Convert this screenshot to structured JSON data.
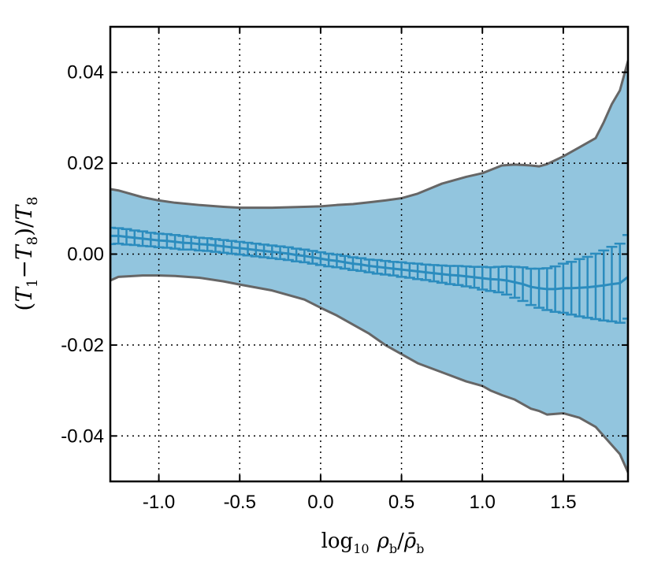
{
  "chart_data": {
    "type": "area",
    "title": "",
    "xlabel": "log10 ρb/ρ̄b",
    "ylabel": "(T1−T8)/T8",
    "xlim": [
      -1.3,
      1.9
    ],
    "ylim": [
      -0.05,
      0.05
    ],
    "x_ticks": [
      -1.0,
      -0.5,
      0.0,
      0.5,
      1.0,
      1.5
    ],
    "x_tick_labels": [
      "-1.0",
      "-0.5",
      "0.0",
      "0.5",
      "1.0",
      "1.5"
    ],
    "y_ticks": [
      -0.04,
      -0.02,
      0.0,
      0.02,
      0.04
    ],
    "y_tick_labels": [
      "-0.04",
      "-0.02",
      "0.00",
      "0.02",
      "0.04"
    ],
    "grid": true,
    "grid_style": "dotted",
    "colors": {
      "band_fill": "#92c5de",
      "band_edge": "#666666",
      "mean_line": "#2b8cbe"
    },
    "band": {
      "x": [
        -1.3,
        -1.25,
        -1.1,
        -1.0,
        -0.9,
        -0.75,
        -0.6,
        -0.5,
        -0.3,
        -0.1,
        0.0,
        0.1,
        0.2,
        0.3,
        0.4,
        0.5,
        0.6,
        0.75,
        0.9,
        1.0,
        1.05,
        1.12,
        1.2,
        1.25,
        1.3,
        1.35,
        1.4,
        1.5,
        1.6,
        1.7,
        1.75,
        1.8,
        1.85,
        1.9
      ],
      "upper": [
        0.0143,
        0.014,
        0.0125,
        0.0118,
        0.0113,
        0.0108,
        0.0104,
        0.0102,
        0.0102,
        0.0104,
        0.0105,
        0.0108,
        0.011,
        0.0114,
        0.0118,
        0.0123,
        0.0133,
        0.0155,
        0.017,
        0.0178,
        0.0185,
        0.0195,
        0.0197,
        0.0196,
        0.0195,
        0.0193,
        0.0198,
        0.0215,
        0.0235,
        0.0255,
        0.029,
        0.033,
        0.036,
        0.0425
      ],
      "lower": [
        -0.0058,
        -0.005,
        -0.0047,
        -0.0047,
        -0.0048,
        -0.0052,
        -0.006,
        -0.0067,
        -0.008,
        -0.01,
        -0.0118,
        -0.0135,
        -0.0155,
        -0.0175,
        -0.02,
        -0.022,
        -0.024,
        -0.026,
        -0.028,
        -0.029,
        -0.03,
        -0.031,
        -0.032,
        -0.033,
        -0.034,
        -0.0345,
        -0.0353,
        -0.035,
        -0.036,
        -0.038,
        -0.04,
        -0.042,
        -0.044,
        -0.048
      ]
    },
    "mean": {
      "x": [
        -1.3,
        -1.25,
        -1.2,
        -1.15,
        -1.1,
        -1.05,
        -1.0,
        -0.95,
        -0.9,
        -0.85,
        -0.8,
        -0.75,
        -0.7,
        -0.65,
        -0.6,
        -0.55,
        -0.5,
        -0.45,
        -0.4,
        -0.35,
        -0.3,
        -0.25,
        -0.2,
        -0.15,
        -0.1,
        -0.05,
        0.0,
        0.05,
        0.1,
        0.15,
        0.2,
        0.25,
        0.3,
        0.35,
        0.4,
        0.45,
        0.5,
        0.55,
        0.6,
        0.65,
        0.7,
        0.75,
        0.8,
        0.85,
        0.9,
        0.95,
        1.0,
        1.05,
        1.1,
        1.15,
        1.2,
        1.25,
        1.3,
        1.35,
        1.4,
        1.45,
        1.5,
        1.55,
        1.6,
        1.65,
        1.7,
        1.75,
        1.8,
        1.85,
        1.9
      ],
      "y": [
        0.004,
        0.004,
        0.0038,
        0.0036,
        0.0034,
        0.0032,
        0.003,
        0.0029,
        0.0027,
        0.0025,
        0.0024,
        0.0022,
        0.0021,
        0.0019,
        0.0017,
        0.0015,
        0.0013,
        0.0011,
        0.0009,
        0.0007,
        0.0005,
        0.0003,
        0.0001,
        -0.0002,
        -0.0004,
        -0.0007,
        -0.001,
        -0.0013,
        -0.0015,
        -0.0018,
        -0.0021,
        -0.0023,
        -0.0026,
        -0.0028,
        -0.003,
        -0.0032,
        -0.0034,
        -0.0036,
        -0.0038,
        -0.004,
        -0.0042,
        -0.0044,
        -0.0046,
        -0.0047,
        -0.0049,
        -0.0051,
        -0.0053,
        -0.0055,
        -0.0056,
        -0.0058,
        -0.0062,
        -0.0066,
        -0.0072,
        -0.0075,
        -0.0077,
        -0.0077,
        -0.0075,
        -0.0075,
        -0.0074,
        -0.0073,
        -0.0071,
        -0.0069,
        -0.0066,
        -0.0064,
        -0.005
      ],
      "err": [
        0.0018,
        0.0017,
        0.0017,
        0.0016,
        0.0016,
        0.0015,
        0.0015,
        0.0015,
        0.0015,
        0.0015,
        0.0014,
        0.0014,
        0.0014,
        0.0014,
        0.0014,
        0.0014,
        0.0014,
        0.0014,
        0.0014,
        0.0014,
        0.0014,
        0.0014,
        0.0014,
        0.0014,
        0.0014,
        0.0014,
        0.0014,
        0.0014,
        0.0014,
        0.0014,
        0.0014,
        0.0014,
        0.0014,
        0.0015,
        0.0015,
        0.0015,
        0.0016,
        0.0016,
        0.0017,
        0.0017,
        0.0018,
        0.0019,
        0.002,
        0.0021,
        0.0022,
        0.0023,
        0.0025,
        0.0026,
        0.0028,
        0.0031,
        0.0034,
        0.0037,
        0.004,
        0.0043,
        0.0046,
        0.005,
        0.0054,
        0.0058,
        0.0063,
        0.0067,
        0.0072,
        0.0077,
        0.0082,
        0.0087,
        0.0092
      ]
    }
  }
}
